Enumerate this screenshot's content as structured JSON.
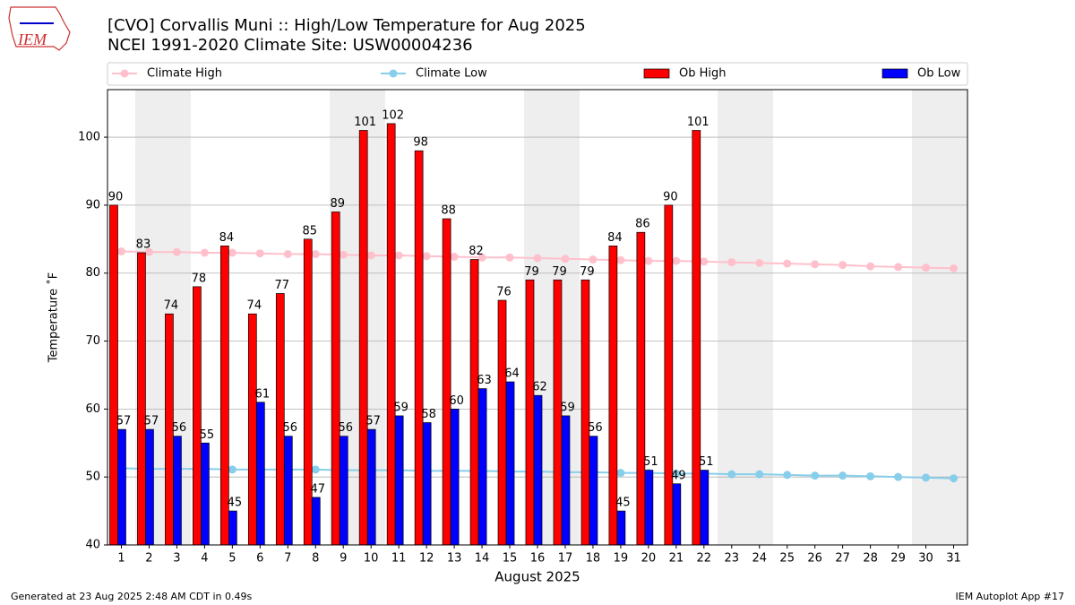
{
  "logo": "IEM",
  "footer": {
    "left": "Generated at 23 Aug 2025 2:48 AM CDT in 0.49s",
    "right": "IEM Autoplot App #17"
  },
  "chart_data": {
    "type": "bar",
    "title": "[CVO] Corvallis Muni :: High/Low Temperature for Aug 2025",
    "subtitle": "NCEI 1991-2020 Climate Site: USW00004236",
    "x_label": "August 2025",
    "y_label": "Temperature ˚F",
    "x": [
      1,
      2,
      3,
      4,
      5,
      6,
      7,
      8,
      9,
      10,
      11,
      12,
      13,
      14,
      15,
      16,
      17,
      18,
      19,
      20,
      21,
      22,
      23,
      24,
      25,
      26,
      27,
      28,
      29,
      30,
      31
    ],
    "xlim": [
      0.5,
      31.5
    ],
    "xticks": [
      1,
      2,
      3,
      4,
      5,
      6,
      7,
      8,
      9,
      10,
      11,
      12,
      13,
      14,
      15,
      16,
      17,
      18,
      19,
      20,
      21,
      22,
      23,
      24,
      25,
      26,
      27,
      28,
      29,
      30,
      31
    ],
    "ylim": [
      40,
      107
    ],
    "yticks": [
      40,
      50,
      60,
      70,
      80,
      90,
      100
    ],
    "grid": true,
    "legend": "top",
    "series": [
      {
        "name": "Climate High",
        "type": "line",
        "color": "#ffc0cb",
        "values": [
          83.2,
          83.1,
          83.1,
          83.0,
          83.0,
          82.9,
          82.8,
          82.8,
          82.7,
          82.6,
          82.6,
          82.5,
          82.4,
          82.3,
          82.3,
          82.2,
          82.1,
          82.0,
          81.9,
          81.8,
          81.8,
          81.7,
          81.6,
          81.5,
          81.4,
          81.3,
          81.2,
          81.0,
          80.9,
          80.8,
          80.7
        ]
      },
      {
        "name": "Climate Low",
        "type": "line",
        "color": "#87ceeb",
        "values": [
          51.3,
          51.2,
          51.2,
          51.2,
          51.1,
          51.1,
          51.1,
          51.1,
          51.0,
          51.0,
          51.0,
          50.9,
          50.9,
          50.9,
          50.8,
          50.8,
          50.7,
          50.7,
          50.6,
          50.6,
          50.5,
          50.5,
          50.4,
          50.4,
          50.3,
          50.2,
          50.2,
          50.1,
          50.0,
          49.9,
          49.8
        ]
      },
      {
        "name": "Ob High",
        "type": "bar",
        "color": "#ff0000",
        "values": [
          90,
          83,
          74,
          78,
          84,
          74,
          77,
          85,
          89,
          101,
          102,
          98,
          88,
          82,
          76,
          79,
          79,
          79,
          84,
          86,
          90,
          101,
          null,
          null,
          null,
          null,
          null,
          null,
          null,
          null,
          null
        ]
      },
      {
        "name": "Ob Low",
        "type": "bar",
        "color": "#0000ff",
        "values": [
          57,
          57,
          56,
          55,
          45,
          61,
          56,
          47,
          56,
          57,
          59,
          58,
          60,
          63,
          64,
          62,
          59,
          56,
          45,
          51,
          49,
          51,
          null,
          null,
          null,
          null,
          null,
          null,
          null,
          null,
          null
        ]
      }
    ]
  }
}
